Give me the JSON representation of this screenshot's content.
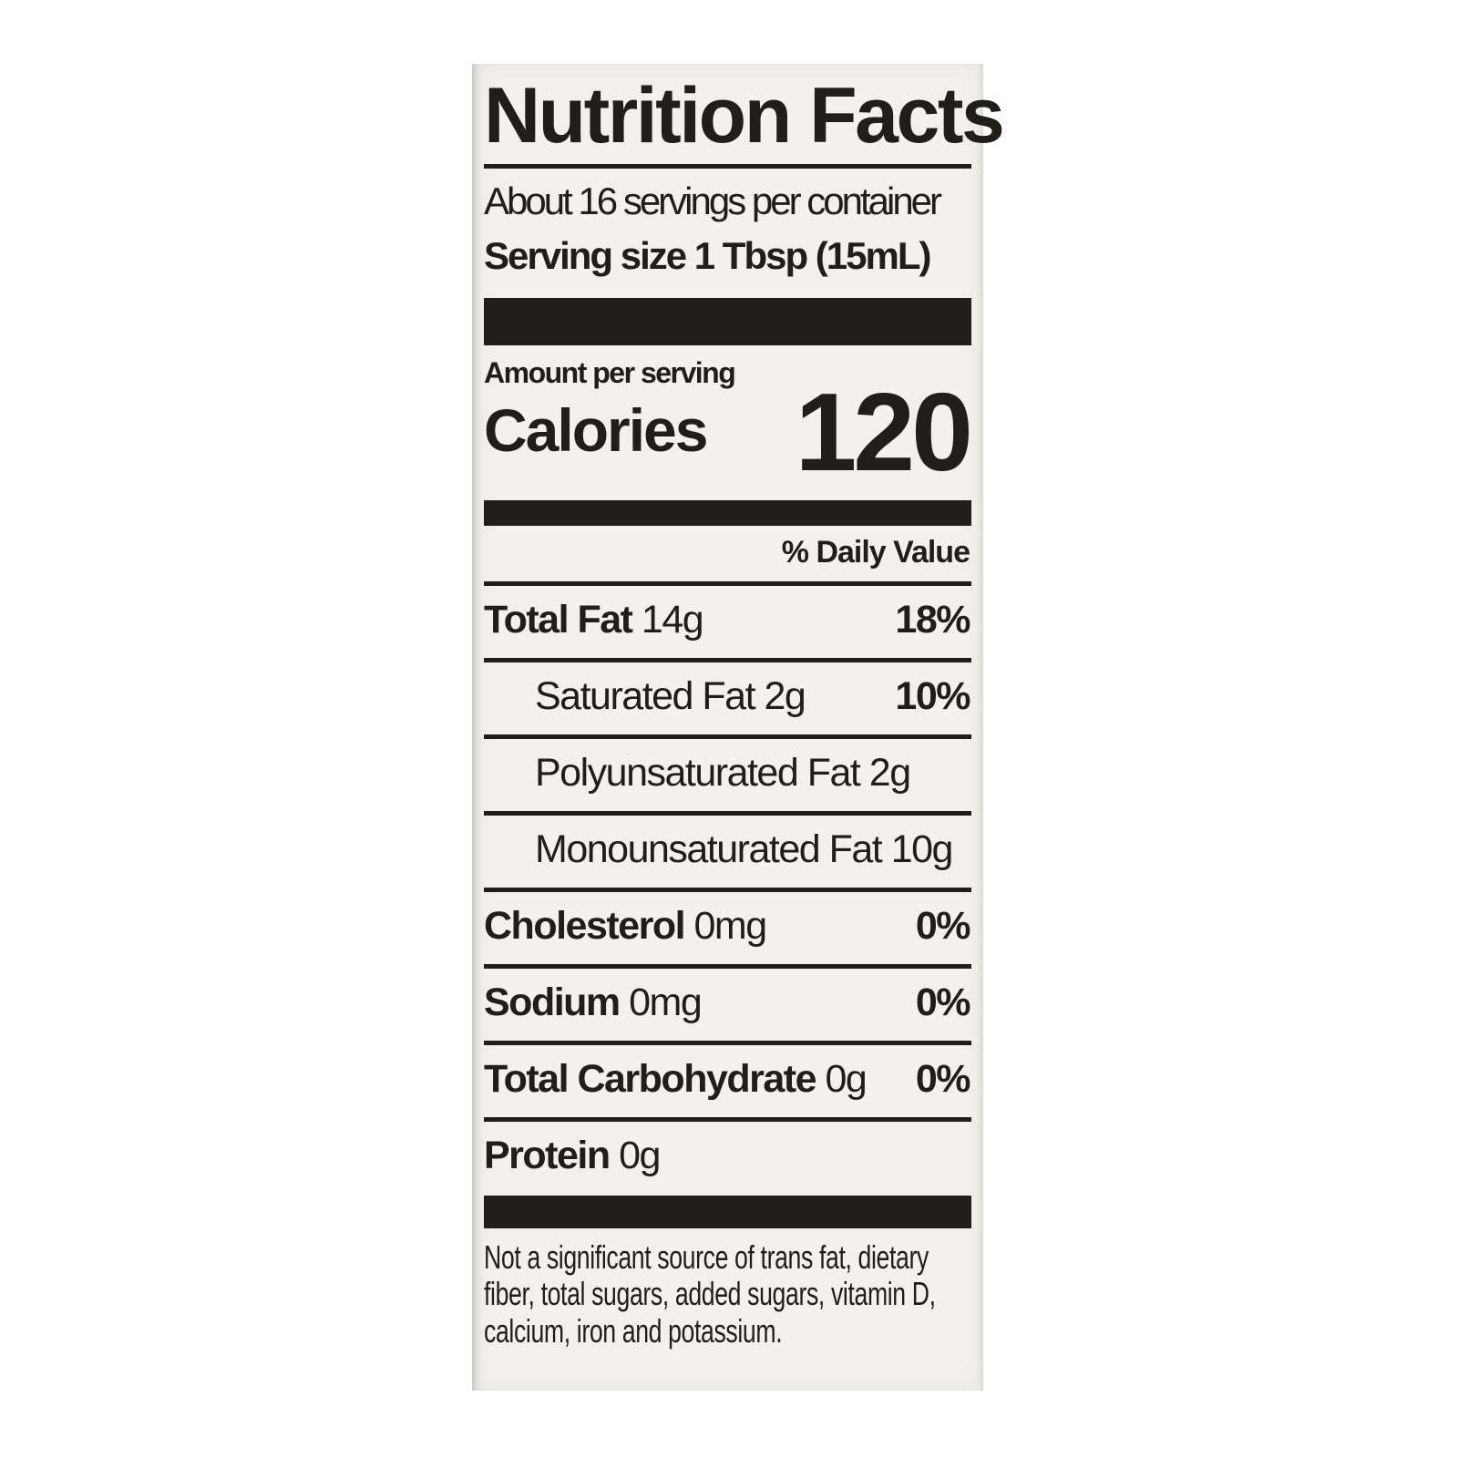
{
  "label": {
    "title": "Nutrition Facts",
    "servings_per_container": "About 16 servings per container",
    "serving_size": "Serving size 1 Tbsp (15mL)",
    "amount_per_serving": "Amount per serving",
    "calories_label": "Calories",
    "calories_value": "120",
    "daily_value_header": "% Daily Value",
    "rows": [
      {
        "name": "Total Fat",
        "amount": "14g",
        "dv": "18%",
        "bold": true,
        "indent": false
      },
      {
        "name": "Saturated Fat",
        "amount": "2g",
        "dv": "10%",
        "bold": false,
        "indent": true
      },
      {
        "name": "Polyunsaturated Fat",
        "amount": "2g",
        "dv": "",
        "bold": false,
        "indent": true
      },
      {
        "name": "Monounsaturated Fat",
        "amount": "10g",
        "dv": "",
        "bold": false,
        "indent": true
      },
      {
        "name": "Cholesterol",
        "amount": "0mg",
        "dv": "0%",
        "bold": true,
        "indent": false
      },
      {
        "name": "Sodium",
        "amount": "0mg",
        "dv": "0%",
        "bold": true,
        "indent": false
      },
      {
        "name": "Total Carbohydrate",
        "amount": "0g",
        "dv": "0%",
        "bold": true,
        "indent": false
      },
      {
        "name": "Protein",
        "amount": "0g",
        "dv": "",
        "bold": true,
        "indent": false
      }
    ],
    "footnote_lines": [
      "Not a significant source of trans fat, dietary",
      "fiber, total sugars, added sugars, vitamin D,",
      "calcium, iron and potassium."
    ],
    "colors": {
      "text": "#211e19",
      "label_background": "#f2f1ed",
      "page_background": "#ffffff",
      "bar": "#211e19"
    }
  }
}
